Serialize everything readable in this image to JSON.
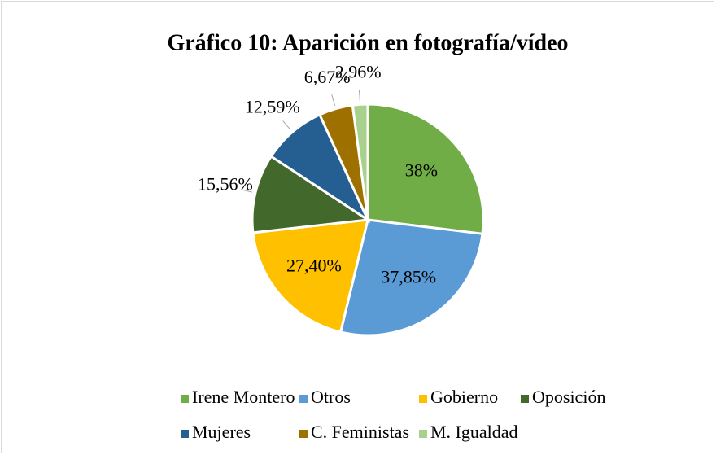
{
  "chart_data": {
    "type": "pie",
    "title": "Gráfico 10: Aparición en fotografía/vídeo",
    "categories": [
      "Irene Montero",
      "Otros",
      "Gobierno",
      "Oposición",
      "Mujeres",
      "C. Feministas",
      "M. Igualdad"
    ],
    "values": [
      38,
      37.85,
      27.4,
      15.56,
      12.59,
      6.67,
      2.96
    ],
    "value_labels": [
      "38%",
      "37,85%",
      "27,40%",
      "15,56%",
      "12,59%",
      "6,67%",
      "2,96%"
    ],
    "colors": [
      "#70ad47",
      "#5b9bd5",
      "#ffc000",
      "#43682b",
      "#255e91",
      "#9e7000",
      "#a9d18e"
    ],
    "legend": "bottom"
  }
}
